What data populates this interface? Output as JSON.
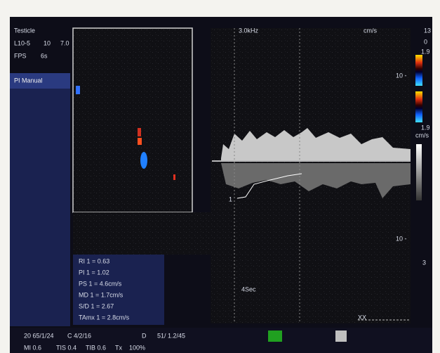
{
  "header": {
    "exam": "Testicle",
    "probe": "L10-5",
    "probe_val1": "10",
    "probe_val2": "7.0",
    "fps_label": "FPS",
    "fps_val": "6s"
  },
  "mode": "PI Manual",
  "doppler": {
    "prf": "3.0kHz",
    "unit_top": "cm/s",
    "scale_top": "10 -",
    "scale_bottom": "10 -",
    "marker": "1",
    "sweep": "4Sec",
    "footer": "XX"
  },
  "color_bar": {
    "max": "13",
    "zero": "0",
    "upper": "1.9",
    "lower": "1.9",
    "unit": "cm/s",
    "side": "3"
  },
  "measurements": [
    "RI 1 = 0.63",
    "PI 1 = 1.02",
    "PS 1 = 4.6cm/s",
    "MD 1 = 1.7cm/s",
    "S/D 1 = 2.67",
    "TAmx 1 = 2.8cm/s"
  ],
  "status": {
    "gain": "20 65/1/24",
    "color": "C 4/2/16",
    "d": "D",
    "doppler": "51/ 1.2/45",
    "mi": "MI 0.6",
    "tis": "TIS 0.4",
    "tib": "TIB 0.6",
    "tx": "Tx",
    "power": "100%"
  }
}
